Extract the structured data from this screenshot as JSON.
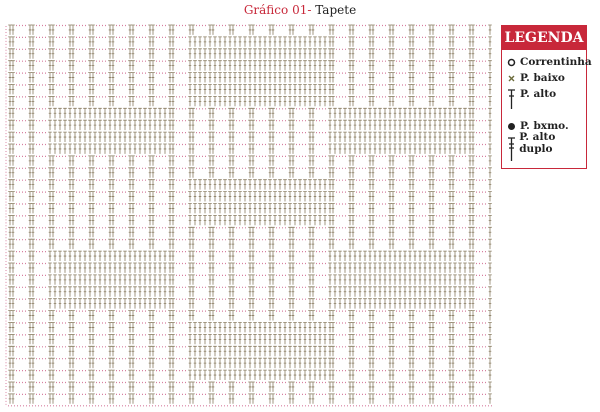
{
  "title": {
    "prefix": "Gráfico 01-",
    "name": "Tapete"
  },
  "legend": {
    "heading": "LEGENDA",
    "items": [
      {
        "icon": "open-circle-icon",
        "label": "Correntinha"
      },
      {
        "icon": "x-mark-icon",
        "label": "P. baixo"
      },
      {
        "icon": "double-crochet-icon",
        "label": "P. alto"
      },
      {
        "icon": "filled-dot-icon",
        "label": "P. bxmo."
      },
      {
        "icon": "treble-crochet-icon",
        "label": "P. alto duplo"
      }
    ]
  },
  "colors": {
    "accent": "#c8283a",
    "stitch": "#8a7d62",
    "chain": "#d77fa0"
  },
  "chart_data": {
    "type": "filet-crochet-grid",
    "rows": 32,
    "cols": 24,
    "filled_blocks": [
      {
        "rows": [
          1,
          6
        ],
        "cols": [
          9,
          15
        ]
      },
      {
        "rows": [
          7,
          10
        ],
        "cols": [
          2,
          7
        ]
      },
      {
        "rows": [
          7,
          10
        ],
        "cols": [
          16,
          22
        ]
      },
      {
        "rows": [
          13,
          16
        ],
        "cols": [
          9,
          15
        ]
      },
      {
        "rows": [
          19,
          23
        ],
        "cols": [
          2,
          7
        ]
      },
      {
        "rows": [
          19,
          23
        ],
        "cols": [
          16,
          22
        ]
      },
      {
        "rows": [
          25,
          29
        ],
        "cols": [
          9,
          15
        ]
      }
    ]
  }
}
